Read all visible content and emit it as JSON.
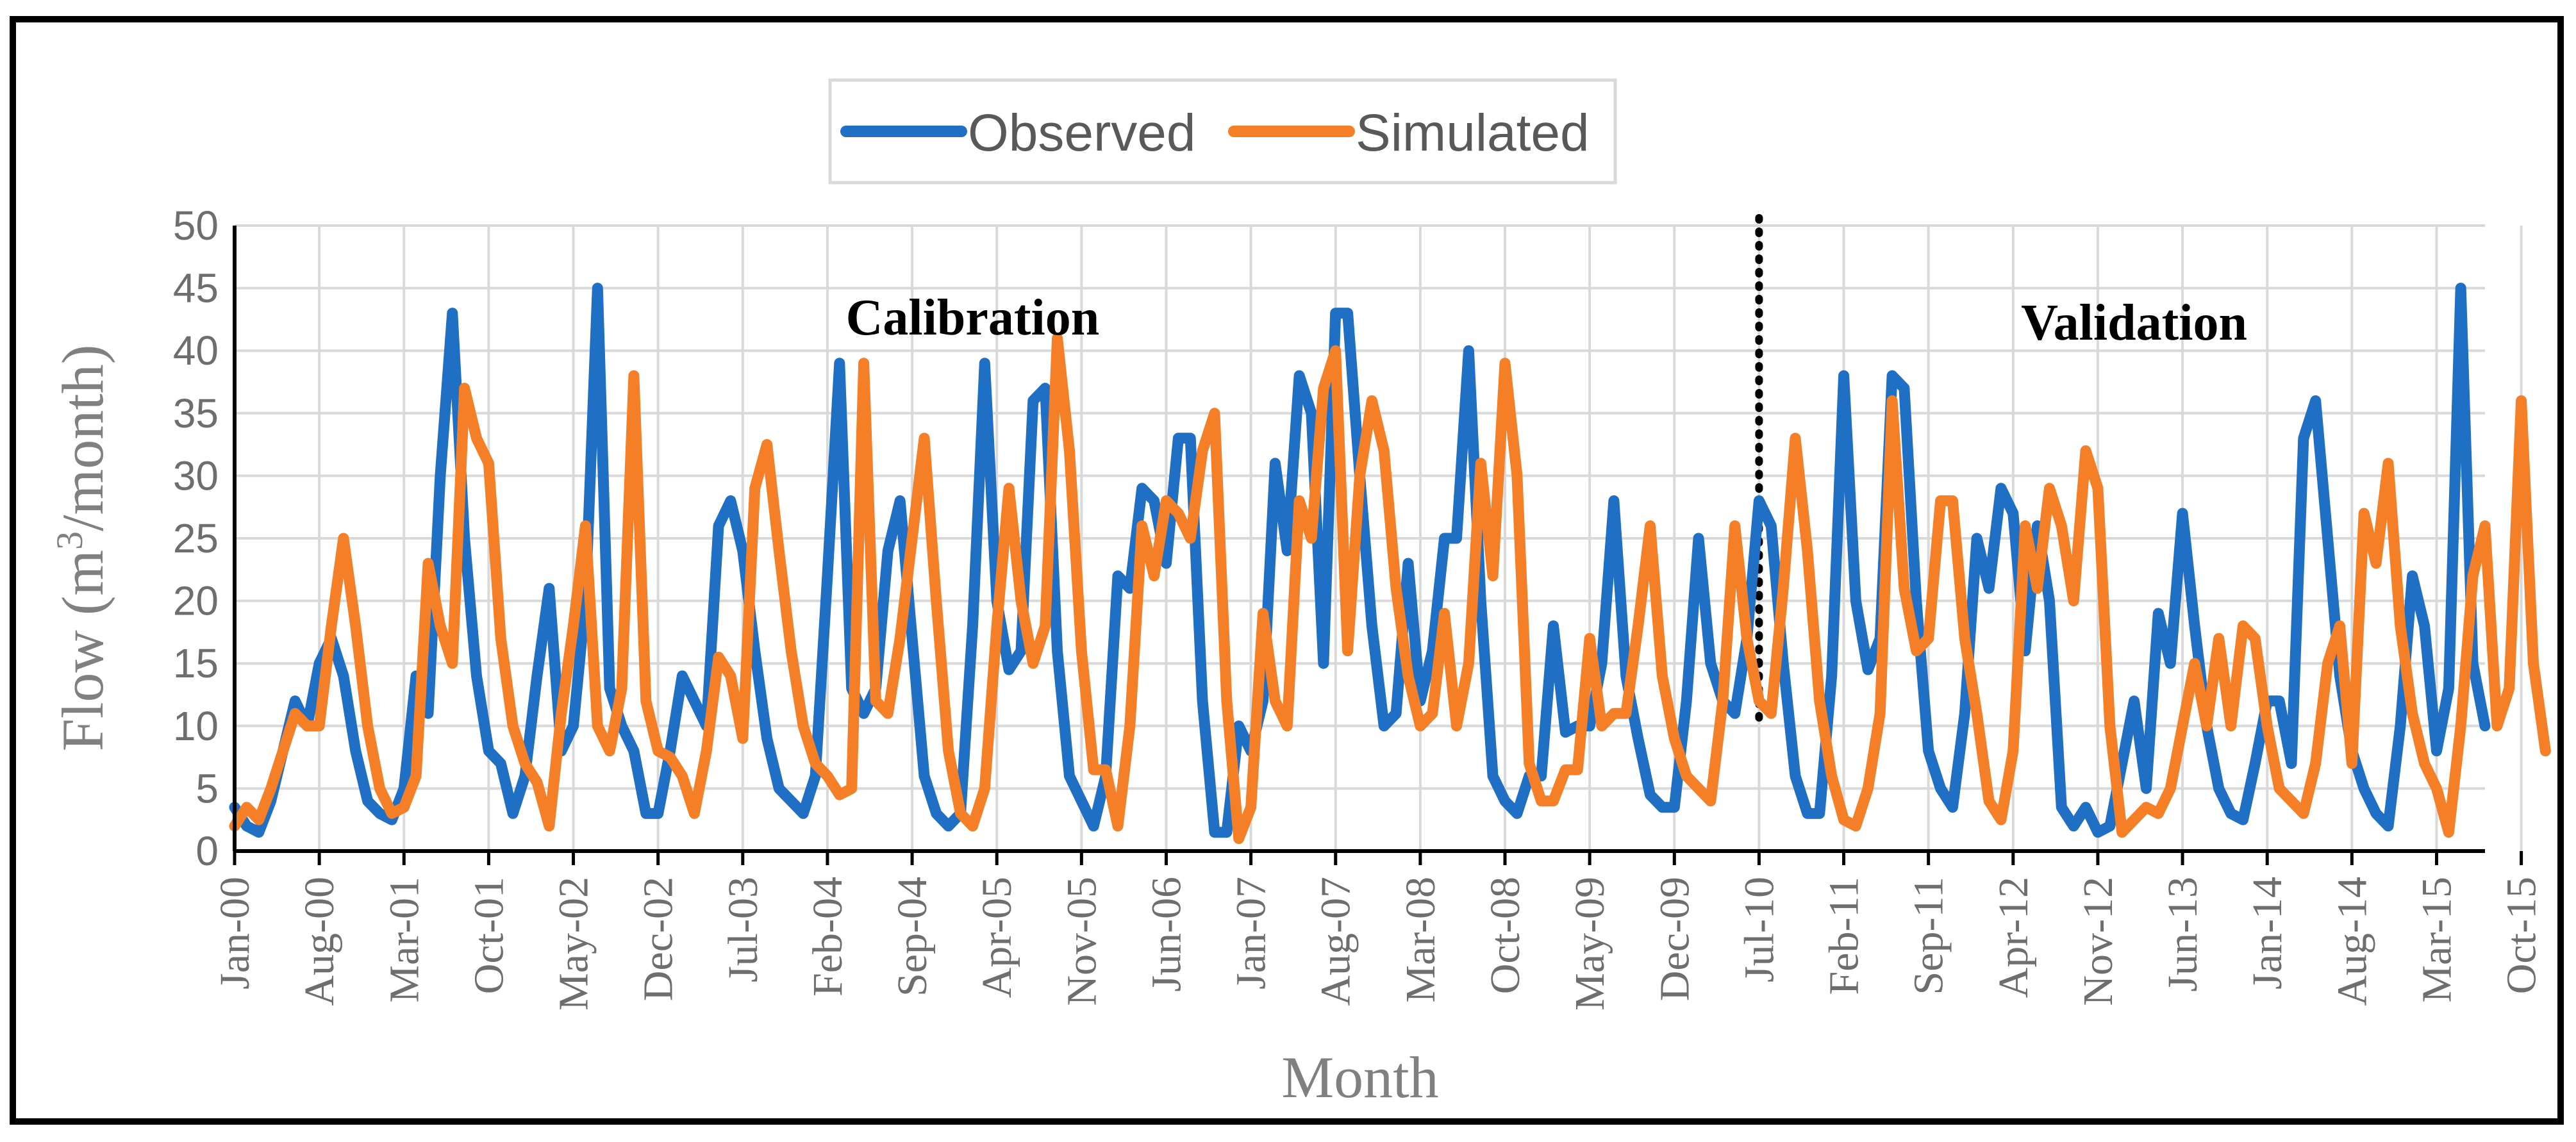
{
  "chart_data": {
    "type": "line",
    "title": "",
    "xlabel": "Month",
    "ylabel": "Flow (m³/month)",
    "ylabel_parts": {
      "pre": "Flow (m",
      "sup": "3",
      "post": "/month)"
    },
    "ylim": [
      0,
      50
    ],
    "yticks": [
      0,
      5,
      10,
      15,
      20,
      25,
      30,
      35,
      40,
      45,
      50
    ],
    "grid": true,
    "legend_position": "top-center",
    "x_start": "Jan-00",
    "x_step_months": 1,
    "xtick_labels": [
      "Jan-00",
      "Aug-00",
      "Mar-01",
      "Oct-01",
      "May-02",
      "Dec-02",
      "Jul-03",
      "Feb-04",
      "Sep-04",
      "Apr-05",
      "Nov-05",
      "Jun-06",
      "Jan-07",
      "Aug-07",
      "Mar-08",
      "Oct-08",
      "May-09",
      "Dec-09",
      "Jul-10",
      "Feb-11",
      "Sep-11",
      "Apr-12",
      "Nov-12",
      "Jun-13",
      "Jan-14",
      "Aug-14",
      "Mar-15",
      "Oct-15"
    ],
    "xtick_indices": [
      0,
      7,
      14,
      21,
      28,
      35,
      42,
      49,
      56,
      63,
      70,
      77,
      84,
      91,
      98,
      105,
      112,
      119,
      126,
      133,
      140,
      147,
      154,
      161,
      168,
      175,
      182,
      189
    ],
    "annotations": [
      {
        "text": "Calibration",
        "month_index": 61
      },
      {
        "text": "Validation",
        "month_index": 157
      }
    ],
    "divider": {
      "month_index": 126,
      "style": "dotted"
    },
    "series": [
      {
        "name": "Observed",
        "color": "#1f6fc5",
        "values": [
          3.5,
          2,
          1.5,
          4,
          8,
          12,
          10,
          15,
          17,
          14,
          8,
          4,
          3,
          2.5,
          5,
          14,
          11,
          30,
          43,
          25,
          14,
          8,
          7,
          3,
          6,
          14,
          21,
          8,
          10,
          20,
          45,
          13,
          10,
          8,
          3,
          3,
          8,
          14,
          12,
          10,
          26,
          28,
          24,
          16,
          9,
          5,
          4,
          3,
          6,
          22,
          39,
          13,
          11,
          13,
          24,
          28,
          17,
          6,
          3,
          2,
          3,
          18,
          39,
          20,
          14.5,
          16,
          36,
          37,
          16,
          6,
          4,
          2,
          6,
          22,
          21,
          29,
          28,
          23,
          33,
          33,
          12,
          1.5,
          1.5,
          10,
          8,
          12,
          31,
          24,
          38,
          35,
          15,
          43,
          43,
          30,
          18,
          10,
          11,
          23,
          12,
          16,
          25,
          25,
          40,
          20,
          6,
          4,
          3,
          6,
          6,
          18,
          9.5,
          10,
          10,
          15,
          28,
          14,
          9,
          4.5,
          3.5,
          3.5,
          12,
          25,
          15,
          12,
          11,
          17,
          28,
          26,
          15,
          6,
          3,
          3,
          14,
          38,
          20,
          14.5,
          17,
          38,
          37,
          20,
          8,
          5,
          3.5,
          11,
          25,
          21,
          29,
          27,
          16,
          26,
          20,
          3.5,
          2,
          3.5,
          1.5,
          2,
          7,
          12,
          5,
          19,
          15,
          27,
          18,
          10,
          5,
          3,
          2.5,
          7,
          12,
          12,
          7,
          33,
          36,
          25,
          14,
          8,
          5,
          3,
          2,
          10,
          22,
          18,
          8,
          13,
          45,
          15,
          10
        ]
      },
      {
        "name": "Simulated",
        "color": "#f47f27",
        "values": [
          2,
          3.5,
          2.5,
          5,
          8,
          11,
          10,
          10,
          18,
          25,
          18,
          10,
          5,
          3,
          3.5,
          6,
          23,
          18,
          15,
          37,
          33,
          31,
          17,
          10,
          7,
          5.5,
          2,
          11,
          18,
          26,
          10,
          8,
          13,
          38,
          12,
          8,
          7.5,
          6,
          3,
          8,
          15.5,
          14,
          9,
          29,
          32.5,
          24,
          16,
          10,
          7,
          6,
          4.5,
          5,
          39,
          12,
          11,
          17,
          25,
          33,
          20,
          8,
          3,
          2,
          5,
          18,
          29,
          20,
          15,
          18,
          41,
          32,
          16,
          6.5,
          6.5,
          2,
          10,
          26,
          22,
          28,
          27,
          25,
          32,
          35,
          12,
          1,
          3.5,
          19,
          12,
          10,
          28,
          25,
          37,
          40,
          16,
          30,
          36,
          32,
          21,
          14,
          10,
          11,
          19,
          10,
          15,
          31,
          22,
          39,
          30,
          7,
          4,
          4,
          6.5,
          6.5,
          17,
          10,
          11,
          11,
          18,
          26,
          14,
          9,
          6,
          5,
          4,
          12,
          26,
          17,
          12,
          11,
          21,
          33,
          24,
          12,
          6,
          2.5,
          2,
          5,
          11,
          36,
          21,
          16,
          17,
          28,
          28,
          17,
          11,
          4,
          2.5,
          8,
          26,
          21,
          29,
          26,
          20,
          32,
          29,
          10,
          1.5,
          2.5,
          3.5,
          3,
          5,
          10,
          15,
          10,
          17,
          10,
          18,
          17,
          10,
          5,
          4,
          3,
          7,
          15,
          18,
          7,
          27,
          23,
          31,
          18,
          11,
          7,
          5,
          1.5,
          10,
          22,
          26,
          10,
          13,
          36,
          15,
          8
        ]
      }
    ]
  }
}
